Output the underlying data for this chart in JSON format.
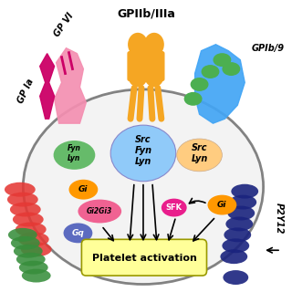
{
  "title": "GPIIb/IIIa",
  "background": "#f0f0f0",
  "cell_color": "#e8e8e8",
  "cell_border": "#222222",
  "labels": {
    "GPIIb_IIIa": "GPIIb/IIIa",
    "GP_Ia": "GP Ia",
    "GP_VI": "GP VI",
    "GPIb9": "GPIb/9",
    "P2Y12": "P2Y12",
    "platelet_activation": "Platelet activation",
    "Src_Fyn_Lyn": "Src\nFyn\nLyn",
    "Src_Lyn": "Src\nLyn",
    "Gi_left": "Gi",
    "Gi_right": "Gi",
    "Gq": "Gq",
    "G12G13": "Gi2Gi3",
    "SFK": "SFK",
    "Fyn_Lyn": "Fyn\nLyn"
  },
  "colors": {
    "orange": "#F5A623",
    "pink_receptor": "#F48FB1",
    "magenta_receptor": "#E040FB",
    "blue_receptor": "#42A5F5",
    "green_receptor": "#4CAF50",
    "dark_green_receptor": "#2E7D32",
    "navy_receptor": "#1A237E",
    "red_receptor": "#E53935",
    "cell_ellipse": "#d0d0d0",
    "src_ellipse": "#90CAF9",
    "src_lyn_ellipse": "#FFCC80",
    "gi_orange": "#FF9800",
    "gq_blue": "#5C6BC0",
    "g12g13_pink": "#F48FB1",
    "sfk_magenta": "#E91E8C",
    "yellow_box": "#FFFF99",
    "arrow_color": "#111111"
  }
}
